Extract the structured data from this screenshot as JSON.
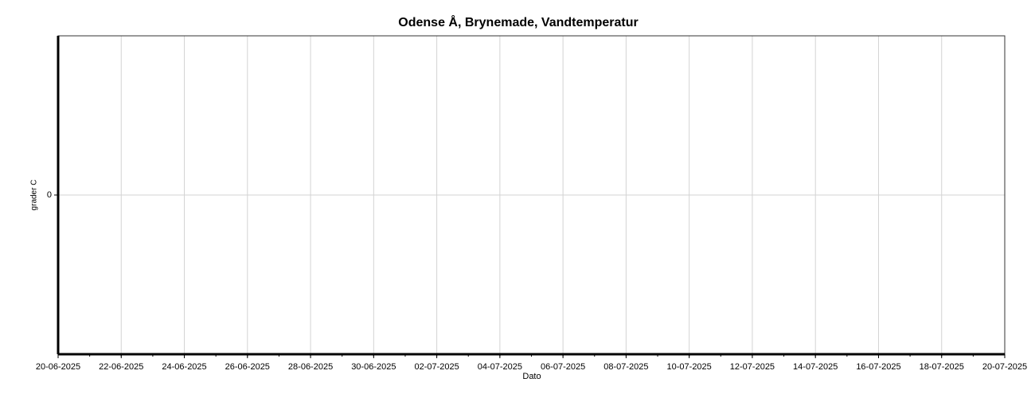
{
  "chart_data": {
    "type": "line",
    "title": "Odense Å, Brynemade, Vandtemperatur",
    "xlabel": "Dato",
    "ylabel": "grader C",
    "xlim": [
      "20-06-2025",
      "20-07-2025"
    ],
    "xticks": [
      "20-06-2025",
      "22-06-2025",
      "24-06-2025",
      "26-06-2025",
      "28-06-2025",
      "30-06-2025",
      "02-07-2025",
      "04-07-2025",
      "06-07-2025",
      "08-07-2025",
      "10-07-2025",
      "12-07-2025",
      "14-07-2025",
      "16-07-2025",
      "18-07-2025",
      "20-07-2025"
    ],
    "ylim": [
      -1,
      1
    ],
    "yticks": [
      0
    ],
    "grid": true
  }
}
